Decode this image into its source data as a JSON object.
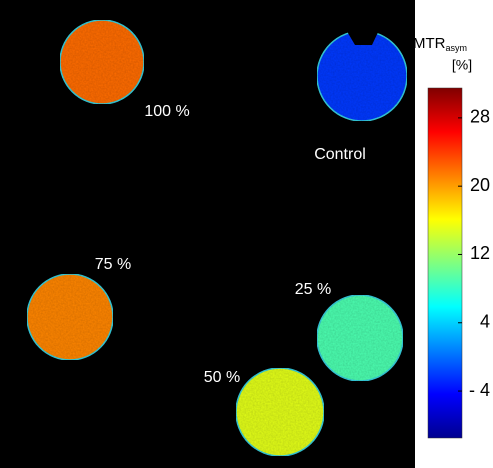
{
  "chart_data": {
    "type": "heatmap",
    "colorbar": {
      "title": "MTR",
      "title_sub": "asym",
      "unit": "[%]",
      "lim": [
        -9.5,
        31.5
      ],
      "ticks": [
        28,
        20,
        12,
        4,
        {
          "value": -4,
          "label": "- 4"
        }
      ]
    },
    "regions": [
      {
        "label": "100 %",
        "value": 22
      },
      {
        "label": "Control",
        "value": -2
      },
      {
        "label": "75 %",
        "value": 21
      },
      {
        "label": "25 %",
        "value": 9
      },
      {
        "label": "50 %",
        "value": 15
      }
    ]
  }
}
